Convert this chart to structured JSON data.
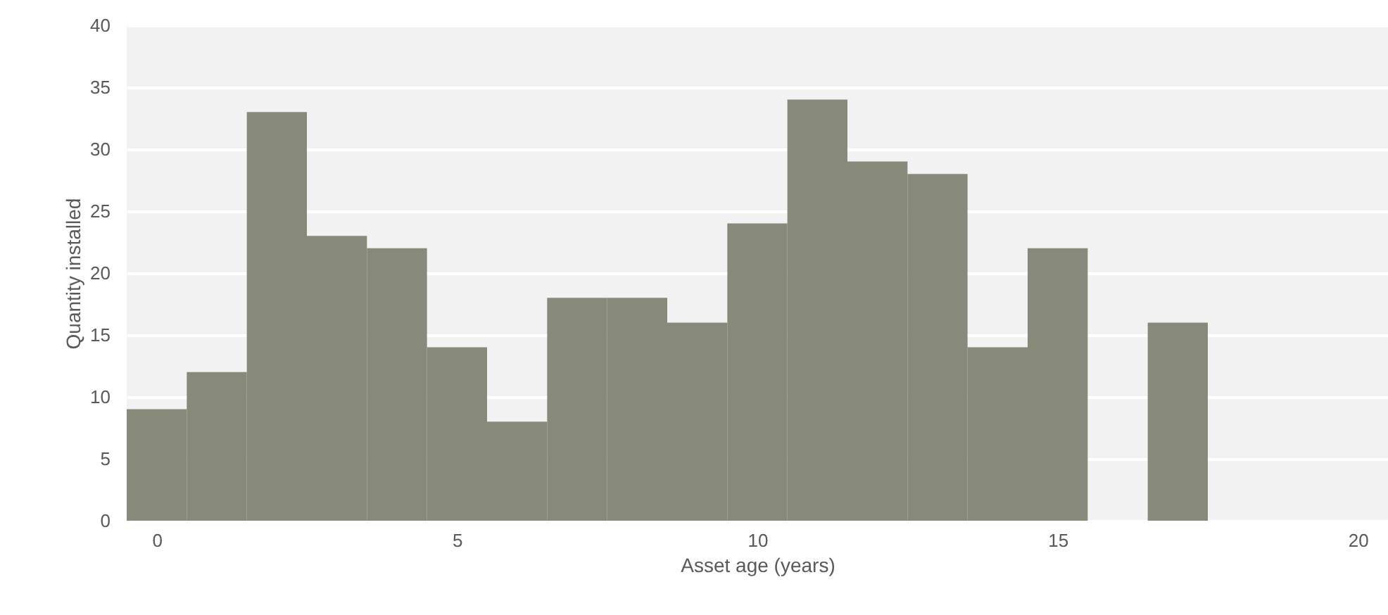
{
  "chart_data": {
    "type": "histogram",
    "xlabel": "Asset age (years)",
    "ylabel": "Quantity installed",
    "bins": [
      -0.5,
      0.5,
      1.5,
      2.5,
      3.5,
      4.5,
      5.5,
      6.5,
      7.5,
      8.5,
      9.5,
      10.5,
      11.5,
      12.5,
      13.5,
      14.5,
      15.5,
      16.5,
      17.5,
      18.5,
      19.5,
      20.5
    ],
    "values": [
      9,
      12,
      33,
      23,
      22,
      14,
      8,
      18,
      18,
      16,
      24,
      34,
      29,
      28,
      14,
      22,
      0,
      16,
      0,
      0,
      0
    ],
    "color": "#878a78",
    "xlim": [
      -0.5,
      20.5
    ],
    "xticks": [
      0,
      5,
      10,
      15,
      20
    ],
    "ylim": [
      0,
      40
    ],
    "yticks": [
      0,
      5,
      10,
      15,
      20,
      25,
      30,
      35,
      40
    ],
    "grid": "y"
  }
}
